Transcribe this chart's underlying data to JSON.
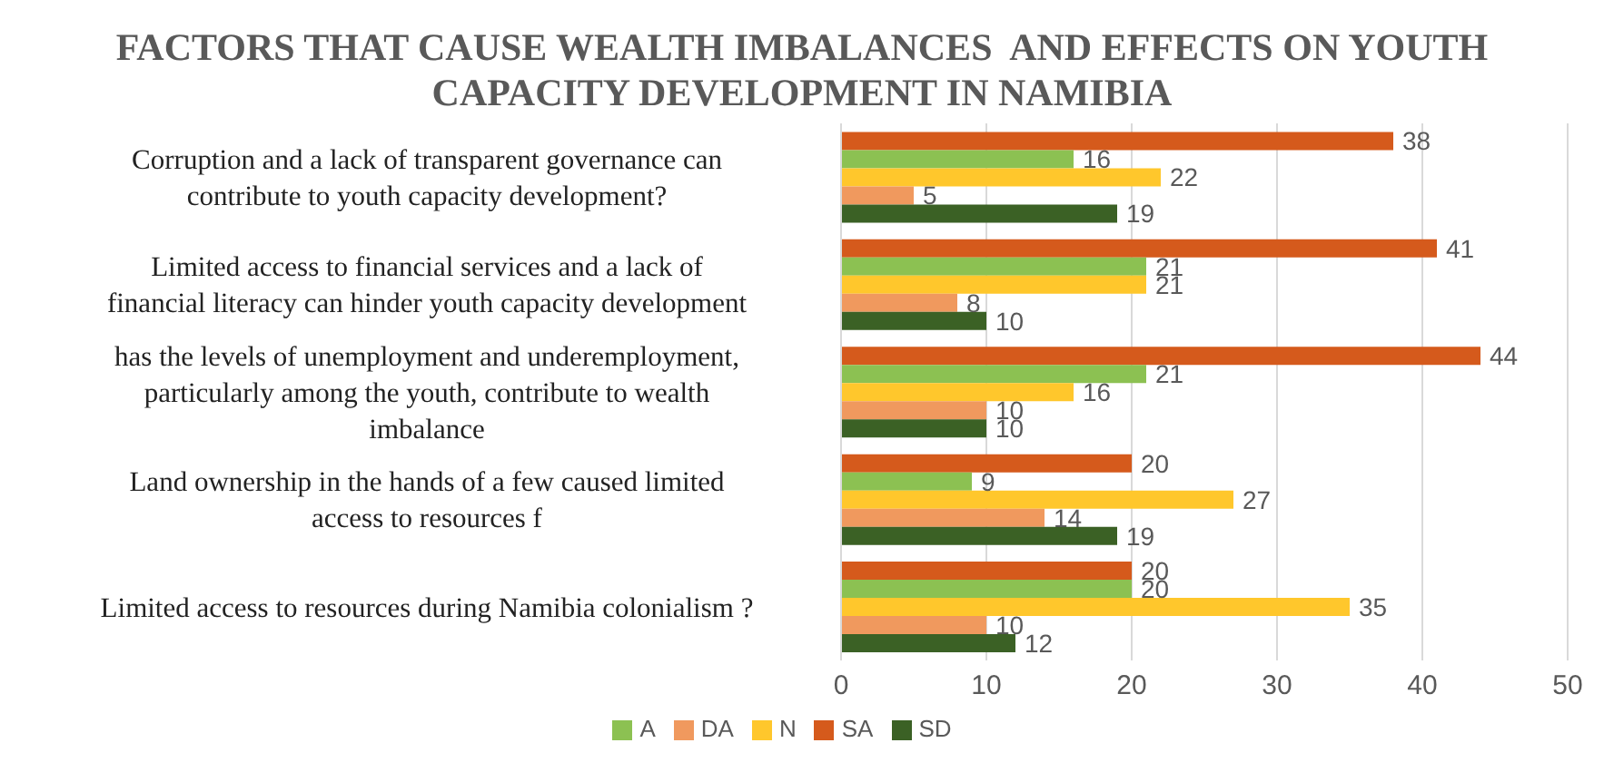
{
  "chart_data": {
    "type": "bar",
    "orientation": "horizontal",
    "title": "FACTORS THAT CAUSE WEALTH IMBALANCES  AND EFFECTS ON YOUTH CAPACITY DEVELOPMENT IN NAMIBIA",
    "categories": [
      "Corruption and a lack of transparent governance can contribute to youth capacity development?",
      "Limited access to financial services and a lack of financial literacy can hinder youth capacity development",
      "has the levels of unemployment and underemployment, particularly among the youth, contribute to wealth imbalance",
      "Land ownership in the hands of a few caused limited access to resources f",
      "Limited access to resources during Namibia colonialism ?"
    ],
    "series": [
      {
        "name": "SA",
        "color": "#d55a1c",
        "values": [
          38,
          41,
          44,
          20,
          20
        ]
      },
      {
        "name": "A",
        "color": "#8cc152",
        "values": [
          16,
          21,
          21,
          9,
          20
        ]
      },
      {
        "name": "N",
        "color": "#ffc72c",
        "values": [
          22,
          21,
          16,
          27,
          35
        ]
      },
      {
        "name": "DA",
        "color": "#f0995e",
        "values": [
          5,
          8,
          10,
          14,
          10
        ]
      },
      {
        "name": "SD",
        "color": "#3b6125",
        "values": [
          19,
          10,
          10,
          19,
          12
        ]
      }
    ],
    "xlim": [
      0,
      50
    ],
    "xticks": [
      0,
      10,
      20,
      30,
      40,
      50
    ],
    "grid": "x",
    "legend": "bottom",
    "data_labels": true
  }
}
